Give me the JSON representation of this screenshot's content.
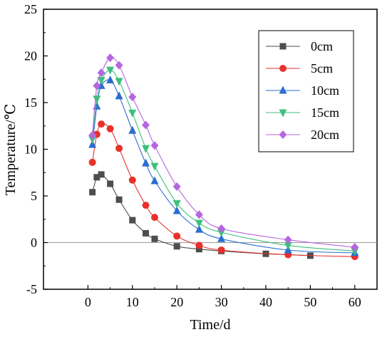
{
  "chart_data": {
    "type": "line",
    "title": "",
    "xlabel": "Time/d",
    "ylabel": "Temperature/℃",
    "xlim": [
      -10,
      65
    ],
    "ylim": [
      -5,
      25
    ],
    "xticks": [
      0,
      10,
      20,
      30,
      40,
      50,
      60
    ],
    "yticks": [
      -5,
      0,
      5,
      10,
      15,
      20,
      25
    ],
    "zero_reference_line": true,
    "grid": false,
    "legend_position": "top-right",
    "series": [
      {
        "name": "0cm",
        "color": "#4d4d4d",
        "marker": "square",
        "x": [
          1,
          2,
          3,
          5,
          7,
          10,
          13,
          15,
          20,
          25,
          30,
          40,
          50
        ],
        "y": [
          5.4,
          7.0,
          7.3,
          6.3,
          4.6,
          2.4,
          1.0,
          0.4,
          -0.4,
          -0.7,
          -0.9,
          -1.2,
          -1.4
        ]
      },
      {
        "name": "5cm",
        "color": "#e8312b",
        "marker": "circle",
        "x": [
          1,
          2,
          3,
          5,
          7,
          10,
          13,
          15,
          20,
          25,
          30,
          45,
          60
        ],
        "y": [
          8.6,
          11.6,
          12.7,
          12.2,
          10.1,
          6.7,
          4.0,
          2.7,
          0.7,
          -0.3,
          -0.8,
          -1.3,
          -1.5
        ]
      },
      {
        "name": "10cm",
        "color": "#2a6ed1",
        "marker": "triangle-up",
        "x": [
          1,
          2,
          3,
          5,
          7,
          10,
          13,
          15,
          20,
          25,
          30,
          45,
          60
        ],
        "y": [
          10.5,
          14.6,
          16.8,
          17.4,
          15.7,
          12.0,
          8.5,
          6.6,
          3.4,
          1.4,
          0.4,
          -0.8,
          -1.1
        ]
      },
      {
        "name": "15cm",
        "color": "#3fbf7f",
        "marker": "triangle-down",
        "x": [
          1,
          2,
          3,
          5,
          7,
          10,
          13,
          15,
          20,
          25,
          30,
          45,
          60
        ],
        "y": [
          11.1,
          15.4,
          17.4,
          18.5,
          17.3,
          13.9,
          10.1,
          8.2,
          4.2,
          2.1,
          1.1,
          -0.3,
          -0.9
        ]
      },
      {
        "name": "20cm",
        "color": "#b566e0",
        "marker": "diamond",
        "x": [
          1,
          2,
          3,
          5,
          7,
          10,
          13,
          15,
          20,
          25,
          30,
          45,
          60
        ],
        "y": [
          11.5,
          16.8,
          18.2,
          19.8,
          19.0,
          15.6,
          12.6,
          10.4,
          6.0,
          3.0,
          1.5,
          0.3,
          -0.5
        ]
      }
    ]
  }
}
